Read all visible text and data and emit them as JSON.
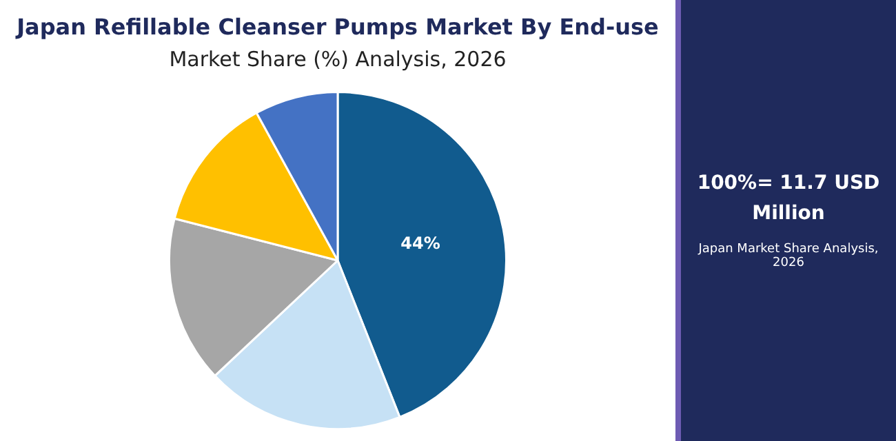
{
  "chart_data": {
    "type": "pie",
    "title": "Japan Refillable Cleanser Pumps Market By End-use",
    "subtitle": "Market Share (%) Analysis, 2026",
    "categories": [
      null,
      null,
      null,
      null,
      null
    ],
    "values": [
      44,
      19,
      16,
      13,
      8
    ],
    "colors": [
      "#115b8e",
      "#c6e1f5",
      "#a6a6a6",
      "#ffc000",
      "#4472c4"
    ],
    "value_labels": [
      "44%",
      null,
      null,
      null,
      null
    ],
    "legend": false,
    "annotations": [
      "100%= 11.7 USD Million",
      "Japan Market Share Analysis, 2026"
    ]
  }
}
